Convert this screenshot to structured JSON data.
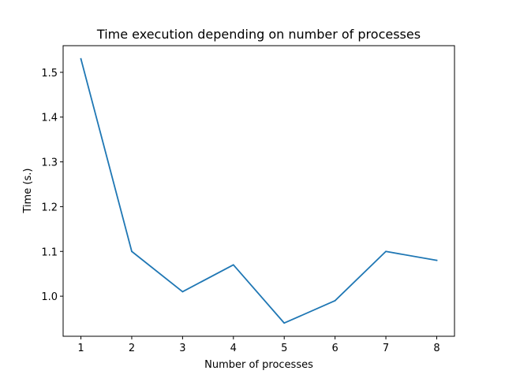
{
  "chart_data": {
    "type": "line",
    "title": "Time execution depending on number of processes",
    "xlabel": "Number of processes",
    "ylabel": "Time (s.)",
    "x": [
      1,
      2,
      3,
      4,
      5,
      6,
      7,
      8
    ],
    "series": [
      {
        "values": [
          1.53,
          1.1,
          1.01,
          1.07,
          0.94,
          0.99,
          1.1,
          1.08
        ],
        "color": "#1f77b4"
      }
    ],
    "xlim": [
      0.65,
      8.35
    ],
    "ylim": [
      0.9105,
      1.5595
    ],
    "xticks": [
      "1",
      "2",
      "3",
      "4",
      "5",
      "6",
      "7",
      "8"
    ],
    "xtick_values": [
      1,
      2,
      3,
      4,
      5,
      6,
      7,
      8
    ],
    "yticks": [
      "1.0",
      "1.1",
      "1.2",
      "1.3",
      "1.4",
      "1.5"
    ],
    "ytick_values": [
      1.0,
      1.1,
      1.2,
      1.3,
      1.4,
      1.5
    ],
    "grid": false,
    "legend": "none"
  }
}
